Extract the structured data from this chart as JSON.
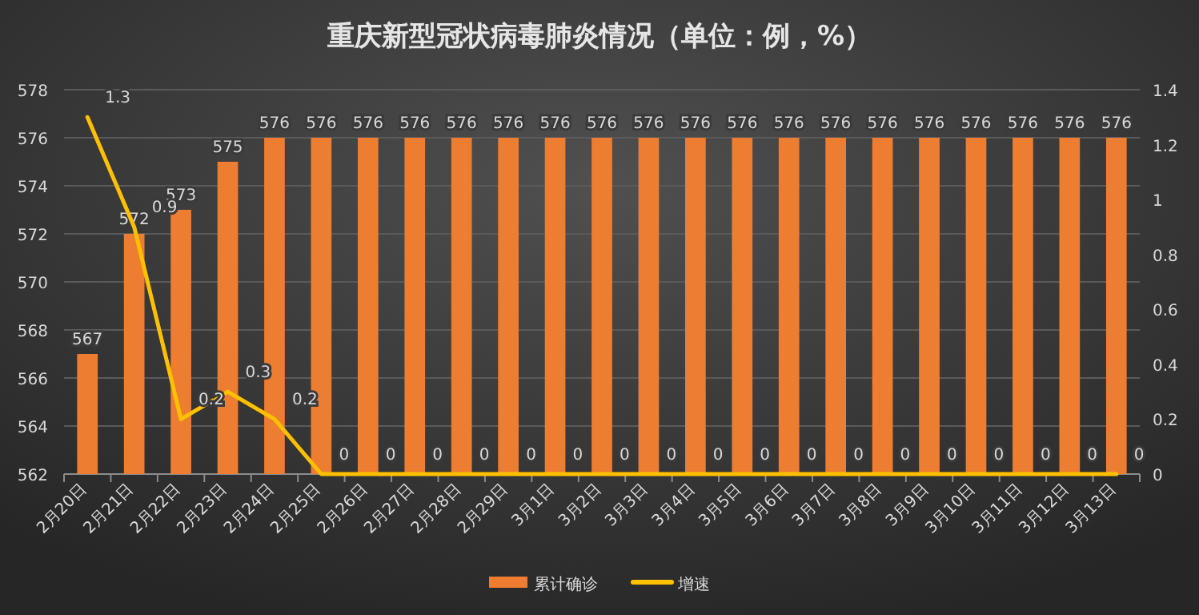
{
  "chart_data": {
    "type": "bar",
    "title": "重庆新型冠状病毒肺炎情况（单位：例，%）",
    "categories": [
      "2月20日",
      "2月21日",
      "2月22日",
      "2月23日",
      "2月24日",
      "2月25日",
      "2月26日",
      "2月27日",
      "2月28日",
      "2月29日",
      "3月1日",
      "3月2日",
      "3月3日",
      "3月4日",
      "3月5日",
      "3月6日",
      "3月7日",
      "3月8日",
      "3月9日",
      "3月10日",
      "3月11日",
      "3月12日",
      "3月13日"
    ],
    "series": [
      {
        "name": "累计确诊",
        "color": "#ed7d31",
        "values": [
          567,
          572,
          573,
          575,
          576,
          576,
          576,
          576,
          576,
          576,
          576,
          576,
          576,
          576,
          576,
          576,
          576,
          576,
          576,
          576,
          576,
          576,
          576
        ]
      },
      {
        "name": "增速",
        "type": "line",
        "axis": "y2",
        "color": "#ffc000",
        "values": [
          1.3,
          0.9,
          0.2,
          0.3,
          0.2,
          0,
          0,
          0,
          0,
          0,
          0,
          0,
          0,
          0,
          0,
          0,
          0,
          0,
          0,
          0,
          0,
          0,
          0
        ]
      }
    ],
    "ylim": [
      562,
      578
    ],
    "yticks": [
      562,
      564,
      566,
      568,
      570,
      572,
      574,
      576,
      578
    ],
    "y2lim": [
      0,
      1.4
    ],
    "y2ticks": [
      0,
      0.2,
      0.4,
      0.6,
      0.8,
      1,
      1.2,
      1.4
    ],
    "grid": "y",
    "data_labels": true,
    "legend": "bottom"
  }
}
